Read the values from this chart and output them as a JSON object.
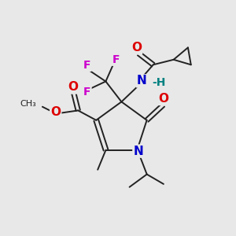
{
  "bg_color": "#e8e8e8",
  "bond_color": "#222222",
  "bond_width": 1.4,
  "atom_colors": {
    "O": "#dd0000",
    "N": "#0000cc",
    "F": "#cc00cc",
    "H": "#008080",
    "C": "#222222"
  },
  "fs_large": 10,
  "fs_med": 9,
  "fs_small": 8,
  "dbo": 0.09
}
